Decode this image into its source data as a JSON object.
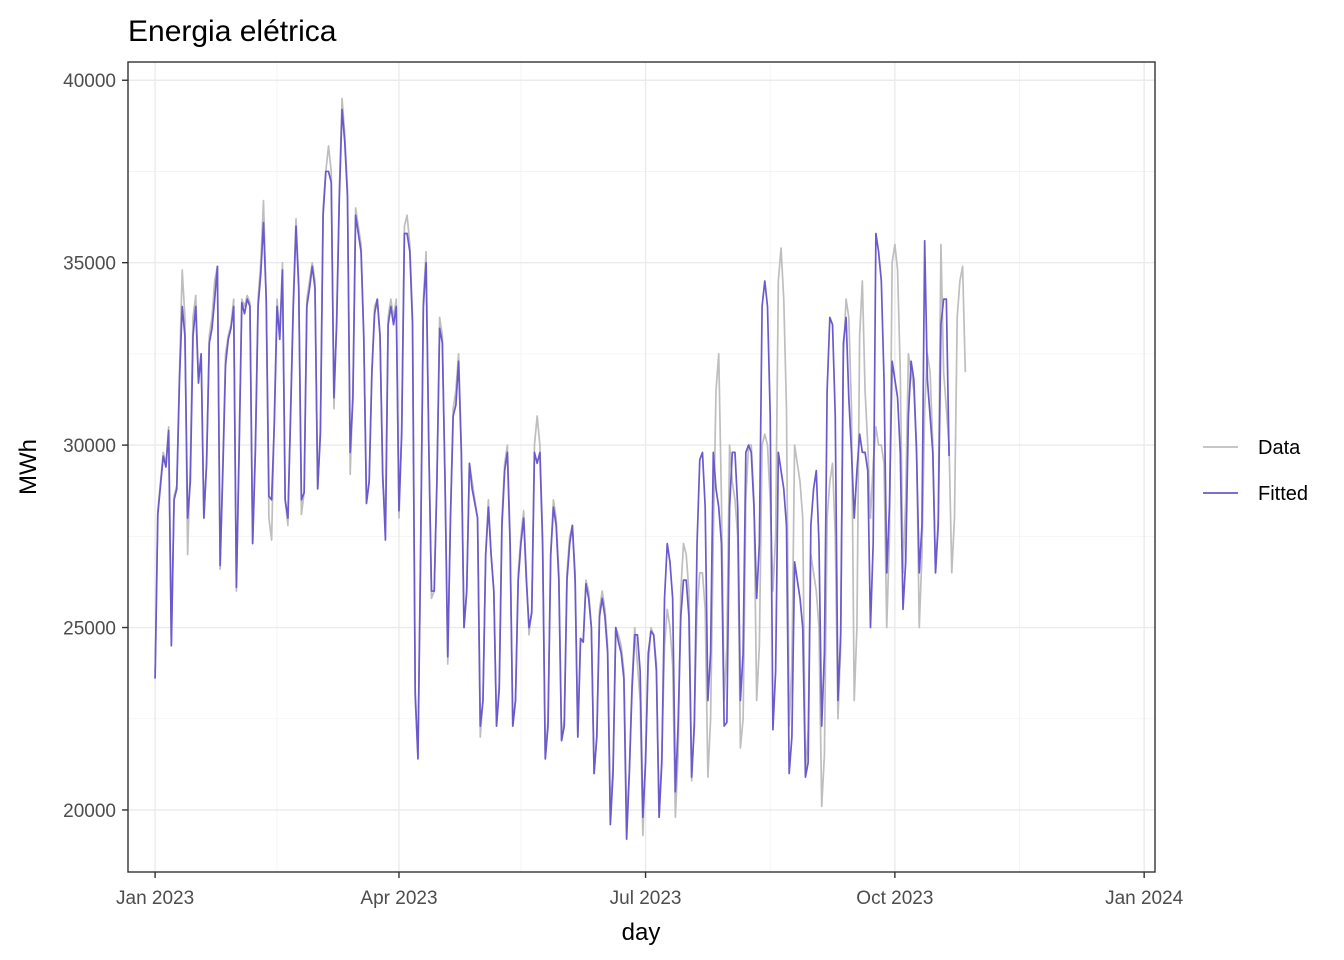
{
  "chart_data": {
    "type": "line",
    "title": "Energia elétrica",
    "xlabel": "day",
    "ylabel": "MWh",
    "xlim": [
      "2022-12-22",
      "2024-01-05"
    ],
    "ylim": [
      18300,
      40500
    ],
    "x_ticks": [
      {
        "date": "2023-01-01",
        "label": "Jan 2023"
      },
      {
        "date": "2023-04-01",
        "label": "Apr 2023"
      },
      {
        "date": "2023-07-01",
        "label": "Jul 2023"
      },
      {
        "date": "2023-10-01",
        "label": "Oct 2023"
      },
      {
        "date": "2024-01-01",
        "label": "Jan 2024"
      }
    ],
    "x_minor_ticks": [
      "2023-02-15",
      "2023-05-16",
      "2023-08-16",
      "2023-11-16"
    ],
    "y_ticks": [
      20000,
      25000,
      30000,
      35000,
      40000
    ],
    "y_minor_ticks": [
      22500,
      27500,
      32500,
      37500
    ],
    "grid": true,
    "legend_position": "right",
    "series": [
      {
        "name": "Data",
        "color": "#bebebe",
        "x_start": "2023-01-01",
        "step_days": 1,
        "values": [
          23600,
          28200,
          29000,
          29800,
          29500,
          30500,
          24600,
          28600,
          28900,
          32000,
          34800,
          33500,
          27000,
          29500,
          33500,
          34100,
          31800,
          32500,
          28000,
          29500,
          33000,
          33500,
          34500,
          34900,
          26600,
          29500,
          32500,
          33000,
          33300,
          34000,
          26000,
          30000,
          34000,
          33800,
          34100,
          33900,
          27300,
          30000,
          34000,
          35000,
          36700,
          34000,
          28000,
          27400,
          30800,
          34000,
          33000,
          35000,
          28500,
          27800,
          31000,
          34000,
          36200,
          34500,
          28100,
          28700,
          34000,
          34500,
          35000,
          34500,
          28800,
          30500,
          36500,
          37500,
          38200,
          37500,
          31000,
          33500,
          37000,
          39500,
          38500,
          37000,
          29200,
          31500,
          36500,
          36000,
          35500,
          33000,
          28500,
          29000,
          32000,
          33800,
          34000,
          33000,
          29000,
          28000,
          33500,
          34000,
          33500,
          34000,
          28000,
          30500,
          36000,
          36300,
          35500,
          33500,
          23000,
          21500,
          27000,
          34000,
          35300,
          30000,
          25800,
          26000,
          29000,
          33500,
          33000,
          29000,
          24000,
          28000,
          31000,
          31500,
          32500,
          30000,
          25000,
          26000,
          29500,
          29000,
          28500,
          28000,
          22000,
          23000,
          27000,
          28500,
          27000,
          26000,
          22300,
          23500,
          28000,
          29500,
          30000,
          27500,
          22300,
          23000,
          26500,
          27500,
          28200,
          26500,
          24800,
          25500,
          30000,
          30800,
          30000,
          27500,
          21400,
          22500,
          27000,
          28500,
          28000,
          26500,
          21900,
          22500,
          26500,
          27500,
          27800,
          26500,
          22000,
          24700,
          24600,
          26300,
          26000,
          25000,
          21000,
          22000,
          25500,
          26000,
          25500,
          24500,
          20000,
          21200,
          25000,
          24800,
          24500,
          23800,
          19700,
          21000,
          23500,
          25000,
          24000,
          23000,
          19300,
          21500,
          24000,
          25000,
          24800,
          24000,
          19800,
          21500,
          24500,
          25500,
          25000,
          24000,
          19800,
          21500,
          26000,
          27300,
          27000,
          26000,
          20800,
          22500,
          25500,
          26500,
          26500,
          25500,
          20900,
          22500,
          27500,
          31500,
          32500,
          28500,
          23000,
          24500,
          30000,
          29000,
          28500,
          27500,
          21700,
          22500,
          28500,
          30000,
          30000,
          28500,
          23000,
          24500,
          30000,
          30300,
          30000,
          28500,
          26000,
          27500,
          34500,
          35400,
          34000,
          31000,
          22300,
          24000,
          30000,
          29500,
          29000,
          28000,
          21000,
          22200,
          27000,
          26500,
          26000,
          25000,
          20100,
          21500,
          28000,
          29000,
          29500,
          27500,
          22500,
          24500,
          32500,
          34000,
          33500,
          31000,
          23000,
          25000,
          33000,
          34500,
          31500,
          30000,
          28000,
          29500,
          30500,
          30000,
          30000,
          29500,
          25000,
          27500,
          35000,
          35500,
          34800,
          32000,
          26500,
          28500,
          32500,
          32000,
          31500,
          30000,
          25000,
          27000,
          31000,
          32500,
          32000,
          30000,
          26500,
          28000,
          35500,
          32000,
          31000,
          30000,
          26500,
          28000,
          33500,
          34500,
          34900,
          32000
        ],
        "note_visible": false
      },
      {
        "name": "Fitted",
        "color": "#6a5acd",
        "x_start": "2023-01-01",
        "step_days": 1,
        "values": [
          23600,
          28100,
          28900,
          29700,
          29400,
          30400,
          24500,
          28500,
          28800,
          31800,
          33800,
          33000,
          28000,
          29000,
          33000,
          33800,
          31700,
          32500,
          28000,
          29500,
          32800,
          33200,
          34000,
          34900,
          26700,
          29300,
          32200,
          32900,
          33200,
          33800,
          26100,
          29800,
          33900,
          33600,
          34000,
          33800,
          27300,
          29800,
          33800,
          34700,
          36100,
          34000,
          28600,
          28500,
          30600,
          33800,
          32900,
          34800,
          28500,
          28000,
          30800,
          33800,
          36000,
          34300,
          28500,
          28700,
          33800,
          34300,
          34900,
          34300,
          28800,
          30300,
          36300,
          37500,
          37500,
          37200,
          31300,
          33300,
          36800,
          39200,
          38300,
          36800,
          29800,
          31300,
          36300,
          35800,
          35300,
          33000,
          28400,
          29000,
          32000,
          33600,
          34000,
          33000,
          29200,
          27400,
          33300,
          33800,
          33300,
          33800,
          28200,
          30300,
          35800,
          35800,
          35300,
          33300,
          23200,
          21400,
          27200,
          33800,
          35000,
          30000,
          26000,
          26000,
          29000,
          33200,
          32800,
          29000,
          24200,
          28000,
          30800,
          31100,
          32300,
          29800,
          25000,
          26000,
          29500,
          28800,
          28400,
          28000,
          22300,
          23000,
          27000,
          28300,
          27000,
          26000,
          22300,
          23300,
          27800,
          29300,
          29800,
          27300,
          22300,
          23000,
          26300,
          27300,
          28000,
          26300,
          25000,
          25400,
          29800,
          29500,
          29800,
          27300,
          21400,
          22300,
          27000,
          28300,
          27800,
          26300,
          21900,
          22300,
          26300,
          27300,
          27800,
          26300,
          22000,
          24700,
          24600,
          26200,
          25800,
          25000,
          21000,
          22000,
          25300,
          25800,
          25300,
          24300,
          19600,
          21000,
          25000,
          24600,
          24300,
          23600,
          19200,
          21000,
          23300,
          24800,
          24800,
          23800,
          19800,
          21300,
          24300,
          24900,
          24800,
          23800,
          19800,
          21300,
          25800,
          27300,
          26800,
          25800,
          20500,
          22300,
          25300,
          26300,
          26300,
          25300,
          20900,
          22300,
          27300,
          29600,
          29800,
          28300,
          23000,
          24300,
          29800,
          28800,
          28300,
          27300,
          22300,
          22400,
          28300,
          29800,
          29800,
          28300,
          23000,
          24300,
          29800,
          30000,
          29800,
          28300,
          25800,
          27300,
          33800,
          34500,
          33800,
          30800,
          22200,
          23800,
          29800,
          29300,
          28800,
          27800,
          21000,
          22000,
          26800,
          26300,
          25800,
          25000,
          20900,
          21300,
          27800,
          28800,
          29300,
          27300,
          22300,
          24300,
          31500,
          33500,
          33300,
          30800,
          23000,
          24800,
          32800,
          33500,
          31300,
          29800,
          28000,
          29300,
          30300,
          29800,
          29800,
          29300,
          25000,
          27300,
          35800,
          35300,
          34500,
          31800,
          26500,
          28300,
          32300,
          31800,
          31300,
          29800,
          25500,
          26800,
          30800,
          32300,
          31800,
          29800,
          26500,
          27800,
          35600,
          31800,
          30800,
          29800,
          26500,
          27800,
          33300,
          34000,
          34000,
          29700
        ],
        "note_visible": false
      }
    ]
  }
}
